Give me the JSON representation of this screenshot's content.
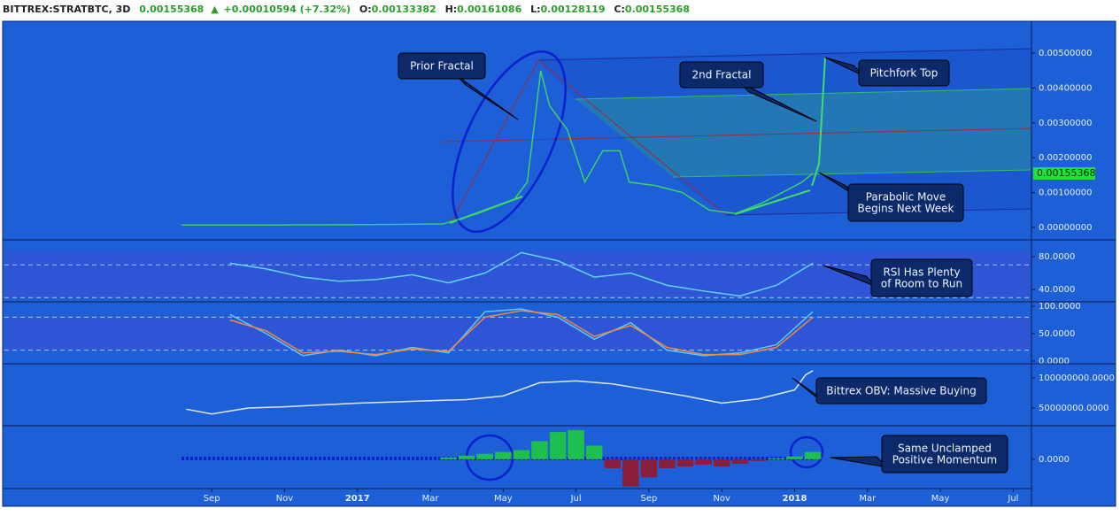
{
  "header": {
    "symbol": "BITTREX:STRATBTC, 3D",
    "last": "0.00155368",
    "change": "+0.00010594 (+7.32%)",
    "o_label": "O:",
    "o": "0.00133382",
    "h_label": "H:",
    "h": "0.00161086",
    "l_label": "L:",
    "l": "0.00128119",
    "c_label": "C:",
    "c": "0.00155368"
  },
  "annotations": [
    {
      "lines": [
        "Prior Fractal"
      ]
    },
    {
      "lines": [
        "2nd Fractal"
      ]
    },
    {
      "lines": [
        "Pitchfork Top"
      ]
    },
    {
      "lines": [
        "Parabolic Move",
        "Begins Next Week"
      ]
    },
    {
      "lines": [
        "RSI Has Plenty",
        "of Room to Run"
      ]
    },
    {
      "lines": [
        "Bittrex OBV: Massive Buying"
      ]
    },
    {
      "lines": [
        "Same Unclamped",
        "Positive Momentum"
      ]
    }
  ],
  "chart_data": [
    {
      "type": "line",
      "color": "#3fd06a",
      "x": [
        -0.83,
        1.5,
        3.9,
        6.35,
        7.3,
        8.3,
        8.66,
        8.86,
        9.03,
        9.27,
        9.76,
        10.24,
        10.73,
        11.2,
        11.46,
        12.19,
        12.92,
        13.65,
        14.38,
        15.1,
        15.84,
        16.2,
        16.5
      ],
      "values": [
        7e-05,
        7e-05,
        8e-05,
        0.0001,
        0.0004,
        0.0008,
        0.0013,
        0.003,
        0.0045,
        0.0035,
        0.0028,
        0.0013,
        0.0022,
        0.0022,
        0.0013,
        0.0012,
        0.001,
        0.0005,
        0.0004,
        0.0007,
        0.0011,
        0.0013,
        0.00155
      ],
      "ylim": [
        -0.00033,
        0.00589
      ],
      "yticks": [
        {
          "value": 0,
          "label": "0.00000000"
        },
        {
          "value": 0.001,
          "label": "0.00100000"
        },
        {
          "value": 0.002,
          "label": "0.00200000"
        },
        {
          "value": 0.003,
          "label": "0.00300000"
        },
        {
          "value": 0.004,
          "label": "0.00400000"
        },
        {
          "value": 0.005,
          "label": "0.00500000"
        }
      ]
    },
    {
      "type": "line",
      "color": "#5fd4ff",
      "x": [
        0.5,
        1.5,
        2.5,
        3.5,
        4.5,
        5.5,
        6.5,
        7.5,
        8.5,
        9.5,
        10.5,
        11.5,
        12.5,
        13.5,
        14.5,
        15.5,
        16.5
      ],
      "values": [
        72,
        65,
        55,
        50,
        52,
        58,
        48,
        60,
        85,
        75,
        55,
        60,
        45,
        38,
        32,
        45,
        72
      ],
      "ylim": [
        25.9,
        99.5
      ],
      "yticks": [
        {
          "value": 40,
          "label": "40.0000"
        },
        {
          "value": 80,
          "label": "80.0000"
        }
      ],
      "hlines": [
        30,
        70
      ]
    },
    {
      "type": "line",
      "x": [
        0.5,
        1.5,
        2.5,
        3.5,
        4.5,
        5.5,
        6.5,
        7.5,
        8.5,
        9.5,
        10.5,
        11.5,
        12.5,
        13.5,
        14.5,
        15.5,
        16.5
      ],
      "series": [
        {
          "color": "#5fc8ff",
          "values": [
            85,
            50,
            10,
            20,
            10,
            25,
            15,
            90,
            95,
            80,
            40,
            70,
            20,
            10,
            15,
            30,
            90
          ]
        },
        {
          "color": "#f08a3c",
          "values": [
            75,
            55,
            15,
            18,
            12,
            22,
            18,
            80,
            92,
            85,
            45,
            65,
            25,
            12,
            12,
            25,
            80
          ]
        }
      ],
      "ylim": [
        -3.2,
        106.5
      ],
      "yticks": [
        {
          "value": 0,
          "label": "0.0000"
        },
        {
          "value": 50,
          "label": "50.0000"
        },
        {
          "value": 100,
          "label": "100.0000"
        }
      ],
      "hlines": [
        20,
        80
      ]
    },
    {
      "type": "line",
      "color": "#dfe8ff",
      "x": [
        -0.7,
        0,
        1,
        2,
        3,
        4,
        5,
        6,
        7,
        8,
        9,
        10,
        11,
        12,
        13,
        14,
        15,
        16,
        16.3,
        16.5
      ],
      "values": [
        48000000,
        40000000,
        50000000,
        52000000,
        55000000,
        58000000,
        60000000,
        62000000,
        64000000,
        70000000,
        92000000,
        95000000,
        90000000,
        80000000,
        70000000,
        58000000,
        65000000,
        80000000,
        105000000,
        112000000
      ],
      "ylim": [
        22000000,
        122000000
      ],
      "yticks": [
        {
          "value": 50000000,
          "label": "50000000.0000"
        },
        {
          "value": 100000000,
          "label": "100000000.0000"
        }
      ]
    },
    {
      "type": "bar",
      "up_color": "#1fbf4f",
      "down_color": "#8a1f3c",
      "x": [
        6.5,
        7,
        7.5,
        8,
        8.5,
        9,
        9.5,
        10,
        10.5,
        11,
        11.5,
        12,
        12.5,
        13,
        13.5,
        14,
        14.5,
        15,
        15.5,
        16,
        16.5
      ],
      "values": [
        2e-05,
        4e-05,
        6e-05,
        8e-05,
        0.0001,
        0.0002,
        0.0003,
        0.00032,
        0.00015,
        -0.0001,
        -0.0003,
        -0.0002,
        -0.0001,
        -8e-05,
        -6e-05,
        -8e-05,
        -5e-05,
        -2e-05,
        1e-05,
        3e-05,
        8e-05
      ],
      "ylim": [
        -0.0005,
        0.00036
      ],
      "yticks": [
        {
          "value": 0,
          "label": "0.0000"
        }
      ],
      "xlim": [
        -5.69,
        22.5
      ],
      "xticks": [
        {
          "value": 0,
          "label": "Sep"
        },
        {
          "value": 2,
          "label": "Nov"
        },
        {
          "value": 4,
          "label": "2017"
        },
        {
          "value": 6,
          "label": "Mar"
        },
        {
          "value": 8,
          "label": "May"
        },
        {
          "value": 10,
          "label": "Jul"
        },
        {
          "value": 12,
          "label": "Sep"
        },
        {
          "value": 14,
          "label": "Nov"
        },
        {
          "value": 16,
          "label": "2018"
        },
        {
          "value": 18,
          "label": "Mar"
        },
        {
          "value": 20,
          "label": "May"
        },
        {
          "value": 22,
          "label": "Jul"
        }
      ]
    }
  ]
}
